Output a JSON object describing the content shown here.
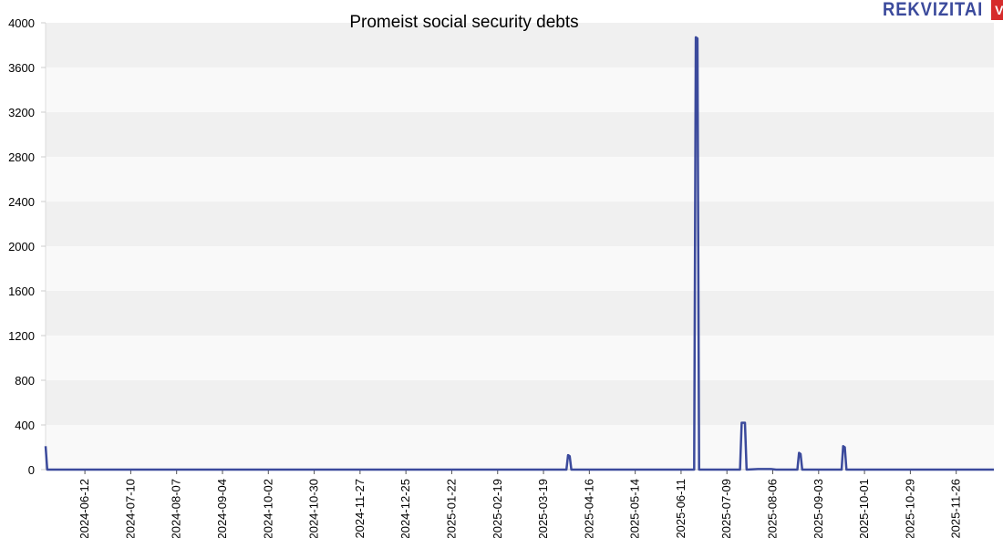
{
  "logo": {
    "text": "REKVIZITAI",
    "badge": "VŽ",
    "text_color": "#3b4a9c",
    "badge_color": "#d62b2b"
  },
  "chart_data": {
    "type": "line",
    "title": "Promeist social security debts",
    "xlabel": "",
    "ylabel": "",
    "ylim": [
      0,
      4000
    ],
    "yticks": [
      0,
      400,
      800,
      1200,
      1600,
      2000,
      2400,
      2800,
      3200,
      3600,
      4000
    ],
    "xlim": [
      "2024-05-19",
      "2025-12-19"
    ],
    "xticks": [
      "2024-06-12",
      "2024-07-10",
      "2024-08-07",
      "2024-09-04",
      "2024-10-02",
      "2024-10-30",
      "2024-11-27",
      "2024-12-25",
      "2025-01-22",
      "2025-02-19",
      "2025-03-19",
      "2025-04-16",
      "2025-05-14",
      "2025-06-11",
      "2025-07-09",
      "2025-08-06",
      "2025-09-03",
      "2025-10-01",
      "2025-10-29",
      "2025-11-26"
    ],
    "grid": "horizontal bands",
    "line_color": "#3b4a9c",
    "series": [
      {
        "name": "",
        "points": [
          [
            "2024-05-19",
            210
          ],
          [
            "2024-05-20",
            0
          ],
          [
            "2025-04-02",
            0
          ],
          [
            "2025-04-03",
            130
          ],
          [
            "2025-04-04",
            120
          ],
          [
            "2025-04-05",
            0
          ],
          [
            "2025-06-19",
            0
          ],
          [
            "2025-06-20",
            3870
          ],
          [
            "2025-06-21",
            3860
          ],
          [
            "2025-06-22",
            0
          ],
          [
            "2025-07-17",
            0
          ],
          [
            "2025-07-18",
            420
          ],
          [
            "2025-07-20",
            420
          ],
          [
            "2025-07-21",
            0
          ],
          [
            "2025-07-28",
            5
          ],
          [
            "2025-08-05",
            5
          ],
          [
            "2025-08-08",
            0
          ],
          [
            "2025-08-21",
            0
          ],
          [
            "2025-08-22",
            150
          ],
          [
            "2025-08-23",
            140
          ],
          [
            "2025-08-24",
            0
          ],
          [
            "2025-09-17",
            0
          ],
          [
            "2025-09-18",
            210
          ],
          [
            "2025-09-19",
            200
          ],
          [
            "2025-09-20",
            0
          ],
          [
            "2025-12-19",
            0
          ]
        ]
      }
    ]
  }
}
